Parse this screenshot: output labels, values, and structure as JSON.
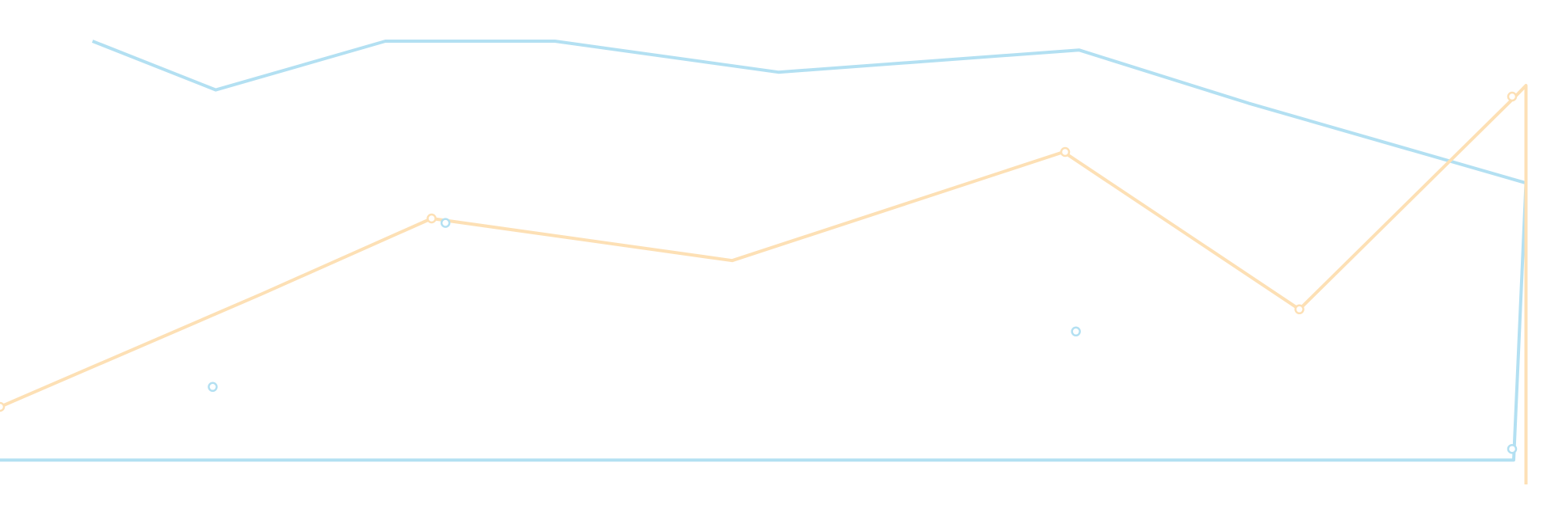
{
  "chart_data": {
    "type": "line",
    "title": "",
    "xlabel": "",
    "ylabel": "",
    "grid": false,
    "legend": "none",
    "x": [
      0,
      10,
      20,
      30,
      40,
      50,
      60,
      70,
      80,
      90,
      100
    ],
    "xlim": [
      0,
      100
    ],
    "ylim": [
      0,
      100
    ],
    "series": [
      {
        "color": "#b3e0f2",
        "points": [
          {
            "x": 6,
            "y": 100
          },
          {
            "x": 14,
            "y": 89
          },
          {
            "x": 25,
            "y": 100
          },
          {
            "x": 36,
            "y": 100
          },
          {
            "x": 50.5,
            "y": 93
          },
          {
            "x": 70,
            "y": 98
          },
          {
            "x": 81,
            "y": 86
          },
          {
            "x": 99,
            "y": 68
          },
          {
            "x": 98.2,
            "y": 5.5
          },
          {
            "x": 0,
            "y": 5.5
          }
        ]
      },
      {
        "color": "#fde0b5",
        "points": [
          {
            "x": 0,
            "y": 17.5
          },
          {
            "x": 17,
            "y": 43
          },
          {
            "x": 28,
            "y": 60
          },
          {
            "x": 47.5,
            "y": 50.5
          },
          {
            "x": 69,
            "y": 75
          },
          {
            "x": 84.3,
            "y": 39.5
          },
          {
            "x": 98.3,
            "y": 87.5
          },
          {
            "x": 99,
            "y": 90
          },
          {
            "x": 99,
            "y": 0
          }
        ]
      }
    ],
    "markers": [
      {
        "series": 0,
        "x": 13.8,
        "y": 22
      },
      {
        "series": 0,
        "x": 28.9,
        "y": 59
      },
      {
        "series": 0,
        "x": 69.8,
        "y": 34.5
      },
      {
        "series": 0,
        "x": 98.1,
        "y": 8
      },
      {
        "series": 1,
        "x": 0,
        "y": 17.5
      },
      {
        "series": 1,
        "x": 28,
        "y": 60
      },
      {
        "series": 1,
        "x": 69.1,
        "y": 75
      },
      {
        "series": 1,
        "x": 84.3,
        "y": 39.5
      },
      {
        "series": 1,
        "x": 98.1,
        "y": 87.5
      }
    ]
  }
}
